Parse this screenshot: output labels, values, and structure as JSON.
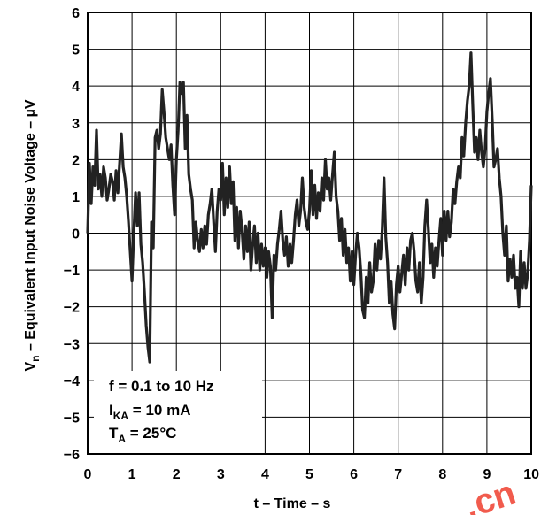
{
  "chart_data": {
    "type": "line",
    "xlabel": "t – Time – s",
    "ylabel_main": "V",
    "ylabel_sub": "n",
    "ylabel_rest": " – Equivalent Input Noise Voltage – µV",
    "xlim": [
      0,
      10
    ],
    "ylim": [
      -6,
      6
    ],
    "x_ticks": [
      "0",
      "1",
      "2",
      "3",
      "4",
      "5",
      "6",
      "7",
      "8",
      "9",
      "10"
    ],
    "y_ticks": [
      "6",
      "5",
      "4",
      "3",
      "2",
      "1",
      "0",
      "−1",
      "−2",
      "−3",
      "−4",
      "−5",
      "−6"
    ],
    "grid": true,
    "annotation": {
      "line1": "f = 0.1 to 10 Hz",
      "line2_main": "I",
      "line2_sub": "KA",
      "line2_rest": " = 10 mA",
      "line3_main": "T",
      "line3_sub": "A",
      "line3_rest": " = 25°C"
    },
    "watermark": ".cn",
    "series": [
      {
        "values": [
          [
            0.0,
            0.0
          ],
          [
            0.04,
            1.9
          ],
          [
            0.08,
            0.8
          ],
          [
            0.12,
            1.8
          ],
          [
            0.16,
            1.3
          ],
          [
            0.2,
            2.8
          ],
          [
            0.24,
            1.2
          ],
          [
            0.28,
            1.6
          ],
          [
            0.32,
            1.0
          ],
          [
            0.36,
            1.8
          ],
          [
            0.4,
            1.5
          ],
          [
            0.44,
            0.9
          ],
          [
            0.48,
            1.2
          ],
          [
            0.52,
            1.6
          ],
          [
            0.56,
            1.4
          ],
          [
            0.6,
            0.9
          ],
          [
            0.64,
            1.7
          ],
          [
            0.68,
            1.1
          ],
          [
            0.72,
            1.9
          ],
          [
            0.76,
            2.7
          ],
          [
            0.8,
            1.8
          ],
          [
            0.84,
            1.5
          ],
          [
            0.88,
            1.0
          ],
          [
            0.92,
            0.3
          ],
          [
            0.96,
            -0.5
          ],
          [
            1.0,
            -1.3
          ],
          [
            1.04,
            0.0
          ],
          [
            1.08,
            1.1
          ],
          [
            1.12,
            0.2
          ],
          [
            1.16,
            1.1
          ],
          [
            1.2,
            -0.3
          ],
          [
            1.24,
            -0.8
          ],
          [
            1.28,
            -1.6
          ],
          [
            1.32,
            -2.5
          ],
          [
            1.36,
            -3.1
          ],
          [
            1.4,
            -3.5
          ],
          [
            1.44,
            0.3
          ],
          [
            1.48,
            -0.4
          ],
          [
            1.52,
            2.6
          ],
          [
            1.56,
            2.8
          ],
          [
            1.6,
            2.3
          ],
          [
            1.64,
            2.7
          ],
          [
            1.68,
            3.9
          ],
          [
            1.72,
            3.3
          ],
          [
            1.76,
            2.6
          ],
          [
            1.8,
            2.3
          ],
          [
            1.84,
            2.0
          ],
          [
            1.88,
            2.4
          ],
          [
            1.92,
            1.3
          ],
          [
            1.96,
            0.5
          ],
          [
            2.0,
            2.0
          ],
          [
            2.04,
            2.8
          ],
          [
            2.08,
            4.1
          ],
          [
            2.12,
            3.8
          ],
          [
            2.16,
            4.1
          ],
          [
            2.2,
            2.3
          ],
          [
            2.24,
            3.2
          ],
          [
            2.28,
            1.6
          ],
          [
            2.32,
            1.2
          ],
          [
            2.36,
            0.9
          ],
          [
            2.4,
            -0.4
          ],
          [
            2.44,
            0.3
          ],
          [
            2.48,
            -0.2
          ],
          [
            2.52,
            -0.5
          ],
          [
            2.56,
            0.1
          ],
          [
            2.6,
            -0.4
          ],
          [
            2.64,
            0.2
          ],
          [
            2.68,
            -0.3
          ],
          [
            2.72,
            0.5
          ],
          [
            2.76,
            0.8
          ],
          [
            2.8,
            1.2
          ],
          [
            2.84,
            0.3
          ],
          [
            2.88,
            -0.5
          ],
          [
            2.92,
            0.6
          ],
          [
            2.96,
            1.2
          ],
          [
            3.0,
            0.9
          ],
          [
            3.04,
            1.9
          ],
          [
            3.08,
            0.5
          ],
          [
            3.12,
            1.5
          ],
          [
            3.16,
            0.7
          ],
          [
            3.2,
            1.8
          ],
          [
            3.24,
            0.8
          ],
          [
            3.28,
            1.4
          ],
          [
            3.32,
            -0.2
          ],
          [
            3.36,
            0.7
          ],
          [
            3.4,
            -0.4
          ],
          [
            3.44,
            0.6
          ],
          [
            3.48,
            0.1
          ],
          [
            3.52,
            -0.7
          ],
          [
            3.56,
            0.2
          ],
          [
            3.6,
            -0.5
          ],
          [
            3.64,
            0.3
          ],
          [
            3.68,
            -1.0
          ],
          [
            3.72,
            -0.3
          ],
          [
            3.76,
            0.2
          ],
          [
            3.8,
            -0.8
          ],
          [
            3.84,
            0.0
          ],
          [
            3.88,
            -1.0
          ],
          [
            3.92,
            -0.3
          ],
          [
            3.96,
            -0.9
          ],
          [
            4.0,
            -0.4
          ],
          [
            4.04,
            -1.2
          ],
          [
            4.08,
            -0.5
          ],
          [
            4.12,
            -0.9
          ],
          [
            4.16,
            -2.3
          ],
          [
            4.2,
            -0.6
          ],
          [
            4.24,
            -1.0
          ],
          [
            4.28,
            -0.3
          ],
          [
            4.32,
            0.1
          ],
          [
            4.36,
            0.6
          ],
          [
            4.4,
            -0.2
          ],
          [
            4.44,
            -0.6
          ],
          [
            4.48,
            -0.1
          ],
          [
            4.52,
            -0.9
          ],
          [
            4.56,
            -0.3
          ],
          [
            4.6,
            -0.8
          ],
          [
            4.64,
            -0.2
          ],
          [
            4.68,
            0.5
          ],
          [
            4.72,
            0.9
          ],
          [
            4.76,
            0.2
          ],
          [
            4.8,
            0.6
          ],
          [
            4.84,
            1.5
          ],
          [
            4.88,
            0.7
          ],
          [
            4.92,
            0.3
          ],
          [
            4.96,
            0.1
          ],
          [
            5.0,
            0.6
          ],
          [
            5.04,
            1.7
          ],
          [
            5.08,
            0.5
          ],
          [
            5.12,
            1.3
          ],
          [
            5.16,
            0.4
          ],
          [
            5.2,
            1.1
          ],
          [
            5.24,
            0.6
          ],
          [
            5.28,
            1.5
          ],
          [
            5.32,
            0.9
          ],
          [
            5.36,
            2.0
          ],
          [
            5.4,
            1.2
          ],
          [
            5.44,
            1.5
          ],
          [
            5.48,
            0.9
          ],
          [
            5.52,
            1.6
          ],
          [
            5.56,
            2.2
          ],
          [
            5.6,
            1.0
          ],
          [
            5.64,
            0.6
          ],
          [
            5.68,
            -0.2
          ],
          [
            5.72,
            0.4
          ],
          [
            5.76,
            -0.6
          ],
          [
            5.8,
            0.1
          ],
          [
            5.84,
            -0.8
          ],
          [
            5.88,
            -0.4
          ],
          [
            5.92,
            -1.3
          ],
          [
            5.96,
            -0.5
          ],
          [
            6.0,
            -1.4
          ],
          [
            6.04,
            -0.6
          ],
          [
            6.08,
            0.0
          ],
          [
            6.12,
            -0.4
          ],
          [
            6.16,
            -1.1
          ],
          [
            6.2,
            -2.1
          ],
          [
            6.24,
            -2.3
          ],
          [
            6.28,
            -1.2
          ],
          [
            6.32,
            -1.9
          ],
          [
            6.36,
            -0.8
          ],
          [
            6.4,
            -1.6
          ],
          [
            6.44,
            -1.3
          ],
          [
            6.48,
            -0.3
          ],
          [
            6.52,
            -1.0
          ],
          [
            6.56,
            -0.2
          ],
          [
            6.6,
            -0.7
          ],
          [
            6.64,
            0.1
          ],
          [
            6.68,
            1.5
          ],
          [
            6.72,
            -0.1
          ],
          [
            6.76,
            -0.8
          ],
          [
            6.8,
            -1.9
          ],
          [
            6.84,
            -1.3
          ],
          [
            6.88,
            -2.2
          ],
          [
            6.92,
            -2.6
          ],
          [
            6.96,
            -1.4
          ],
          [
            7.0,
            -0.9
          ],
          [
            7.04,
            -1.6
          ],
          [
            7.08,
            -1.1
          ],
          [
            7.12,
            -0.6
          ],
          [
            7.16,
            -1.4
          ],
          [
            7.2,
            -0.4
          ],
          [
            7.24,
            -1.0
          ],
          [
            7.28,
            -0.2
          ],
          [
            7.32,
            0.0
          ],
          [
            7.36,
            -0.5
          ],
          [
            7.4,
            -1.3
          ],
          [
            7.44,
            -1.6
          ],
          [
            7.48,
            -0.8
          ],
          [
            7.52,
            -1.9
          ],
          [
            7.56,
            -1.2
          ],
          [
            7.6,
            0.2
          ],
          [
            7.64,
            0.9
          ],
          [
            7.68,
            0.1
          ],
          [
            7.72,
            -0.8
          ],
          [
            7.76,
            -0.3
          ],
          [
            7.8,
            -1.2
          ],
          [
            7.84,
            -0.4
          ],
          [
            7.88,
            -0.9
          ],
          [
            7.92,
            -0.2
          ],
          [
            7.96,
            0.4
          ],
          [
            8.0,
            -0.6
          ],
          [
            8.04,
            0.6
          ],
          [
            8.08,
            -0.2
          ],
          [
            8.12,
            0.6
          ],
          [
            8.16,
            -0.1
          ],
          [
            8.2,
            0.3
          ],
          [
            8.24,
            1.2
          ],
          [
            8.28,
            0.8
          ],
          [
            8.32,
            1.4
          ],
          [
            8.36,
            1.8
          ],
          [
            8.4,
            1.5
          ],
          [
            8.44,
            2.6
          ],
          [
            8.48,
            2.1
          ],
          [
            8.52,
            3.0
          ],
          [
            8.56,
            3.6
          ],
          [
            8.6,
            4.0
          ],
          [
            8.64,
            4.9
          ],
          [
            8.68,
            3.5
          ],
          [
            8.72,
            2.2
          ],
          [
            8.76,
            2.6
          ],
          [
            8.8,
            2.0
          ],
          [
            8.84,
            2.8
          ],
          [
            8.88,
            2.2
          ],
          [
            8.92,
            1.8
          ],
          [
            8.96,
            2.3
          ],
          [
            9.0,
            3.3
          ],
          [
            9.04,
            3.8
          ],
          [
            9.08,
            4.2
          ],
          [
            9.12,
            3.1
          ],
          [
            9.16,
            1.8
          ],
          [
            9.2,
            2.0
          ],
          [
            9.24,
            2.3
          ],
          [
            9.28,
            1.5
          ],
          [
            9.32,
            1.0
          ],
          [
            9.36,
            0.0
          ],
          [
            9.4,
            -0.6
          ],
          [
            9.44,
            0.2
          ],
          [
            9.48,
            -1.3
          ],
          [
            9.52,
            -0.7
          ],
          [
            9.56,
            -1.2
          ],
          [
            9.6,
            -0.6
          ],
          [
            9.64,
            -1.5
          ],
          [
            9.68,
            -1.2
          ],
          [
            9.72,
            -2.0
          ],
          [
            9.76,
            -0.5
          ],
          [
            9.8,
            -1.5
          ],
          [
            9.84,
            -0.8
          ],
          [
            9.88,
            -1.5
          ],
          [
            9.92,
            -1.1
          ],
          [
            9.96,
            -0.2
          ],
          [
            10.0,
            1.3
          ]
        ]
      }
    ]
  }
}
